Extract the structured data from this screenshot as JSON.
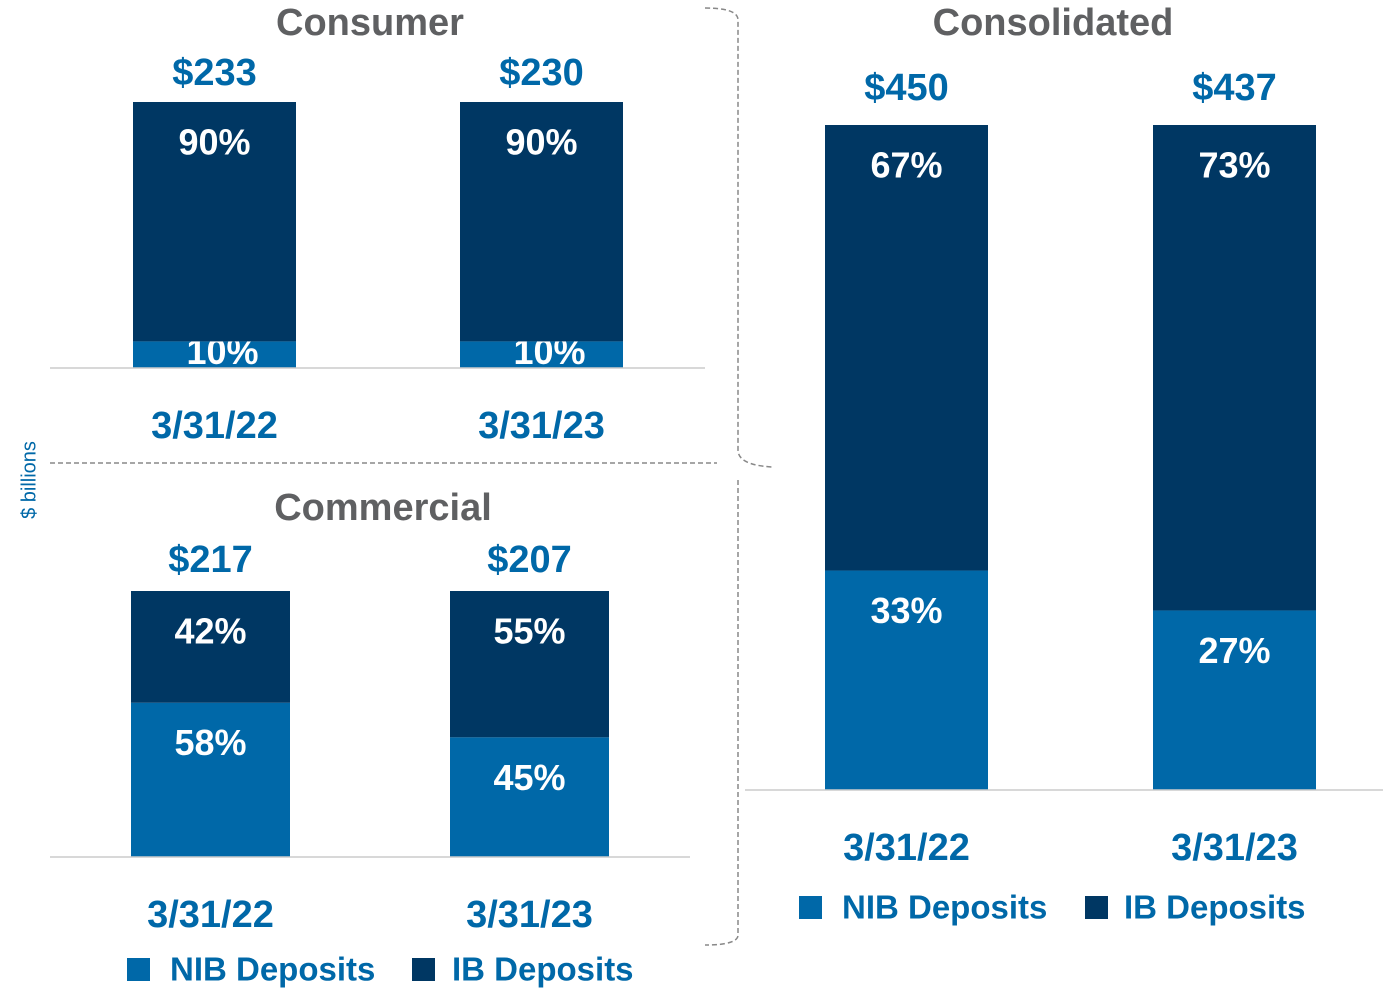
{
  "chart_data": [
    {
      "type": "stacked_percent_bar",
      "title": "Consumer",
      "ylabel": "$ billions",
      "categories": [
        "3/31/22",
        "3/31/23"
      ],
      "totals": [
        233,
        230
      ],
      "total_labels": [
        "$233",
        "$230"
      ],
      "ylim": [
        0,
        100
      ],
      "series": [
        {
          "name": "NIB Deposits",
          "color": "#0068a8",
          "values": [
            10,
            10
          ],
          "value_labels": [
            "10%",
            "10%"
          ]
        },
        {
          "name": "IB Deposits",
          "color": "#003763",
          "values": [
            90,
            90
          ],
          "value_labels": [
            "90%",
            "90%"
          ]
        }
      ]
    },
    {
      "type": "stacked_percent_bar",
      "title": "Commercial",
      "legend": true,
      "categories": [
        "3/31/22",
        "3/31/23"
      ],
      "totals": [
        217,
        207
      ],
      "total_labels": [
        "$217",
        "$207"
      ],
      "ylim": [
        0,
        100
      ],
      "series": [
        {
          "name": "NIB Deposits",
          "color": "#0068a8",
          "values": [
            58,
            45
          ],
          "value_labels": [
            "58%",
            "45%"
          ]
        },
        {
          "name": "IB Deposits",
          "color": "#003763",
          "values": [
            42,
            55
          ],
          "value_labels": [
            "42%",
            "55%"
          ]
        }
      ]
    },
    {
      "type": "stacked_percent_bar",
      "title": "Consolidated",
      "legend": true,
      "categories": [
        "3/31/22",
        "3/31/23"
      ],
      "totals": [
        450,
        437
      ],
      "total_labels": [
        "$450",
        "$437"
      ],
      "ylim": [
        0,
        100
      ],
      "series": [
        {
          "name": "NIB Deposits",
          "color": "#0068a8",
          "values": [
            33,
            27
          ],
          "value_labels": [
            "33%",
            "27%"
          ]
        },
        {
          "name": "IB Deposits",
          "color": "#003763",
          "values": [
            67,
            73
          ],
          "value_labels": [
            "67%",
            "73%"
          ]
        }
      ]
    }
  ]
}
